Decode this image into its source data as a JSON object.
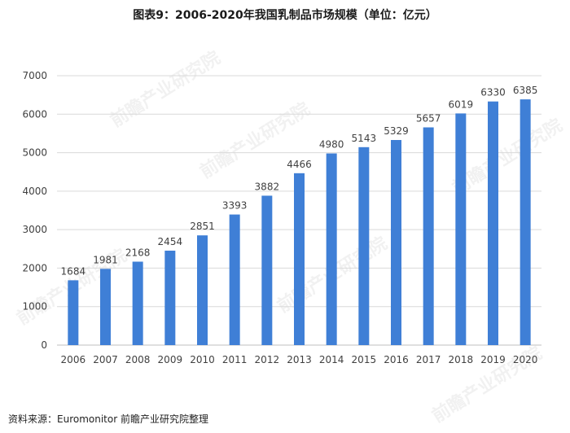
{
  "title": "图表9：2006-2020年我国乳制品市场规模（单位：亿元）",
  "source": "资料来源：Euromonitor 前瞻产业研究院整理",
  "watermark": "前瞻产业研究院",
  "colors": {
    "bar": "#3f7fd6",
    "grid": "#d9d9d9",
    "axis": "#bfbfbf",
    "text": "#404040"
  },
  "chart_data": {
    "type": "bar",
    "categories": [
      "2006",
      "2007",
      "2008",
      "2009",
      "2010",
      "2011",
      "2012",
      "2013",
      "2014",
      "2015",
      "2016",
      "2017",
      "2018",
      "2019",
      "2020"
    ],
    "values": [
      1684,
      1981,
      2168,
      2454,
      2851,
      3393,
      3882,
      4466,
      4980,
      5143,
      5329,
      5657,
      6019,
      6330,
      6385
    ],
    "title": "图表9：2006-2020年我国乳制品市场规模（单位：亿元）",
    "xlabel": "",
    "ylabel": "",
    "ylim": [
      0,
      7000
    ],
    "yticks": [
      0,
      1000,
      2000,
      3000,
      4000,
      5000,
      6000,
      7000
    ],
    "grid": true,
    "legend": "none",
    "data_labels": true
  }
}
